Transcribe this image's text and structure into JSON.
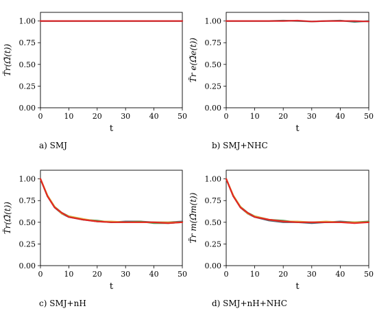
{
  "chart_data": [
    {
      "type": "line",
      "caption": "a) SMJ",
      "xlabel": "t",
      "ylabel": "T̃r(Ω̃(t))",
      "xlim": [
        0,
        50
      ],
      "ylim": [
        0,
        1.1
      ],
      "xticks": [
        "0",
        "10",
        "20",
        "30",
        "40",
        "50"
      ],
      "yticks": [
        "0.00",
        "0.25",
        "0.50",
        "0.75",
        "1.00"
      ],
      "x": [
        0,
        5,
        10,
        15,
        20,
        25,
        30,
        35,
        40,
        45,
        50
      ],
      "series": [
        {
          "values": [
            1.0,
            1.0,
            1.0,
            1.0,
            1.0,
            1.0,
            1.0,
            1.0,
            1.0,
            1.0,
            1.0
          ],
          "color": "#2f6f5f"
        },
        {
          "values": [
            1.0,
            1.0,
            1.0,
            1.0,
            1.0,
            1.0,
            1.0,
            1.0,
            1.0,
            1.0,
            1.0
          ],
          "color": "#e8191f"
        }
      ]
    },
    {
      "type": "line",
      "caption": "b) SMJ+NHC",
      "xlabel": "t",
      "ylabel": "T̃r e(Ω̃e(t))",
      "xlim": [
        0,
        50
      ],
      "ylim": [
        0,
        1.1
      ],
      "xticks": [
        "0",
        "10",
        "20",
        "30",
        "40",
        "50"
      ],
      "yticks": [
        "0.00",
        "0.25",
        "0.50",
        "0.75",
        "1.00"
      ],
      "x": [
        0,
        5,
        10,
        15,
        20,
        25,
        30,
        35,
        40,
        45,
        50
      ],
      "series": [
        {
          "values": [
            1.0,
            1.0,
            1.0,
            1.0,
            1.005,
            1.0,
            0.995,
            1.0,
            1.005,
            0.99,
            1.0
          ],
          "color": "#2f6f5f"
        },
        {
          "values": [
            1.0,
            1.0,
            1.0,
            1.0,
            1.0,
            1.005,
            0.995,
            1.0,
            1.0,
            1.0,
            0.995
          ],
          "color": "#e8191f"
        }
      ]
    },
    {
      "type": "line",
      "caption": "c) SMJ+nH",
      "xlabel": "t",
      "ylabel": "T̃r(Ω̃(t))",
      "xlim": [
        0,
        50
      ],
      "ylim": [
        0,
        1.1
      ],
      "xticks": [
        "0",
        "10",
        "20",
        "30",
        "40",
        "50"
      ],
      "yticks": [
        "0.00",
        "0.25",
        "0.50",
        "0.75",
        "1.00"
      ],
      "x": [
        0,
        2.5,
        5,
        7.5,
        10,
        15,
        20,
        25,
        30,
        35,
        40,
        45,
        50
      ],
      "series": [
        {
          "values": [
            1.0,
            0.8,
            0.67,
            0.6,
            0.56,
            0.53,
            0.51,
            0.5,
            0.51,
            0.51,
            0.5,
            0.5,
            0.51
          ],
          "color": "#3d4f63"
        },
        {
          "values": [
            1.0,
            0.8,
            0.68,
            0.61,
            0.57,
            0.53,
            0.52,
            0.5,
            0.5,
            0.51,
            0.49,
            0.49,
            0.5
          ],
          "color": "#4a8a3c"
        },
        {
          "values": [
            1.0,
            0.81,
            0.68,
            0.6,
            0.57,
            0.54,
            0.51,
            0.51,
            0.5,
            0.5,
            0.5,
            0.5,
            0.5
          ],
          "color": "#d9b23a"
        },
        {
          "values": [
            1.0,
            0.8,
            0.67,
            0.61,
            0.56,
            0.53,
            0.51,
            0.5,
            0.5,
            0.5,
            0.5,
            0.49,
            0.5
          ],
          "color": "#e8191f"
        }
      ]
    },
    {
      "type": "line",
      "caption": "d) SMJ+nH+NHC",
      "xlabel": "t",
      "ylabel": "T̃r m(Ω̃m(t))",
      "xlim": [
        0,
        50
      ],
      "ylim": [
        0,
        1.1
      ],
      "xticks": [
        "0",
        "10",
        "20",
        "30",
        "40",
        "50"
      ],
      "yticks": [
        "0.00",
        "0.25",
        "0.50",
        "0.75",
        "1.00"
      ],
      "x": [
        0,
        2.5,
        5,
        7.5,
        10,
        15,
        20,
        25,
        30,
        35,
        40,
        45,
        50
      ],
      "series": [
        {
          "values": [
            1.0,
            0.8,
            0.67,
            0.6,
            0.56,
            0.52,
            0.5,
            0.5,
            0.49,
            0.5,
            0.51,
            0.5,
            0.5
          ],
          "color": "#3d4f63"
        },
        {
          "values": [
            1.0,
            0.8,
            0.68,
            0.61,
            0.57,
            0.53,
            0.52,
            0.5,
            0.5,
            0.5,
            0.5,
            0.5,
            0.51
          ],
          "color": "#4a8a3c"
        },
        {
          "values": [
            1.0,
            0.81,
            0.68,
            0.6,
            0.57,
            0.53,
            0.51,
            0.51,
            0.5,
            0.51,
            0.5,
            0.5,
            0.5
          ],
          "color": "#d9b23a"
        },
        {
          "values": [
            1.0,
            0.8,
            0.67,
            0.61,
            0.56,
            0.53,
            0.51,
            0.5,
            0.5,
            0.5,
            0.5,
            0.49,
            0.5
          ],
          "color": "#e8191f"
        }
      ]
    }
  ]
}
